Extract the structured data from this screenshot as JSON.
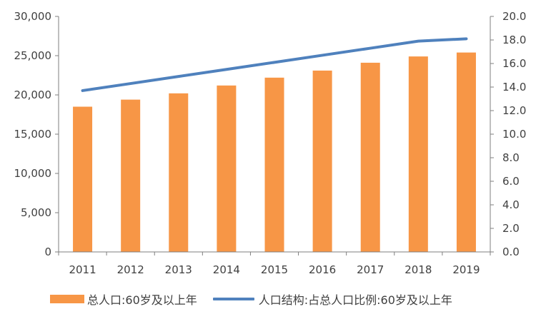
{
  "chart_data": {
    "type": "bar",
    "categories": [
      "2011",
      "2012",
      "2013",
      "2014",
      "2015",
      "2016",
      "2017",
      "2018",
      "2019"
    ],
    "series": [
      {
        "name": "总人口:60岁及以上年",
        "type": "bar",
        "axis": "left",
        "color": "#F79646",
        "values": [
          18500,
          19400,
          20200,
          21200,
          22200,
          23100,
          24100,
          24900,
          25400
        ]
      },
      {
        "name": "人口结构:占总人口比例:60岁及以上年",
        "type": "line",
        "axis": "right",
        "color": "#4F81BD",
        "values": [
          13.7,
          14.3,
          14.9,
          15.5,
          16.1,
          16.7,
          17.3,
          17.9,
          18.1
        ]
      }
    ],
    "ylim_left": [
      0,
      30000
    ],
    "ylim_right": [
      0,
      20
    ],
    "yticks_left": [
      "0",
      "5,000",
      "10,000",
      "15,000",
      "20,000",
      "25,000",
      "30,000"
    ],
    "yticks_right": [
      "0.0",
      "2.0",
      "4.0",
      "6.0",
      "8.0",
      "10.0",
      "12.0",
      "14.0",
      "16.0",
      "18.0",
      "20.0"
    ],
    "grid": false,
    "legend_position": "bottom"
  }
}
